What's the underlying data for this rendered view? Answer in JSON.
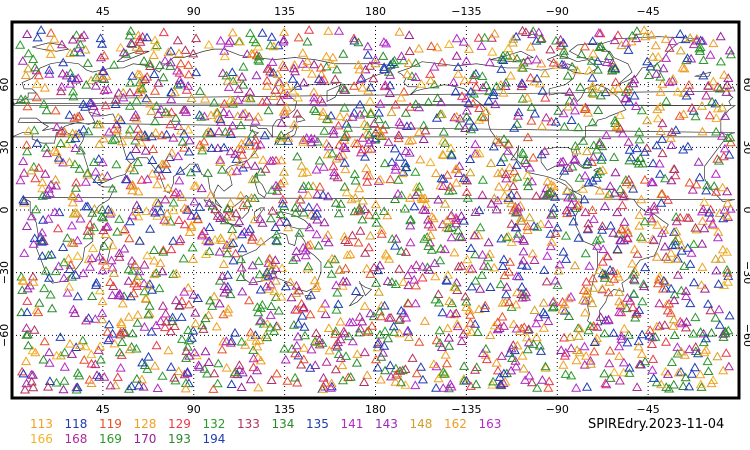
{
  "map": {
    "projection": "cylindrical equidistant",
    "center_longitude": 180,
    "lon_range": [
      0,
      360
    ],
    "lat_range": [
      -90,
      90
    ],
    "gridlines": "dotted",
    "border": "thick black frame",
    "background": "#ffffff",
    "coastline_color": "#333333",
    "marker_shape": "open triangle",
    "lon_ticks": [
      {
        "lon": 45,
        "label": "45"
      },
      {
        "lon": 90,
        "label": "90"
      },
      {
        "lon": 135,
        "label": "135"
      },
      {
        "lon": 180,
        "label": "180"
      },
      {
        "lon": 225,
        "label": "−135"
      },
      {
        "lon": 270,
        "label": "−90"
      },
      {
        "lon": 315,
        "label": "−45"
      }
    ],
    "lat_ticks_left": [
      {
        "lat": 60,
        "label": "60"
      },
      {
        "lat": 30,
        "label": "30"
      },
      {
        "lat": 0,
        "label": "0"
      },
      {
        "lat": -30,
        "label": "−30"
      },
      {
        "lat": -60,
        "label": "−60"
      }
    ],
    "lat_ticks_right": [
      {
        "lat": 60,
        "label": "60"
      },
      {
        "lat": 30,
        "label": "30"
      },
      {
        "lat": 0,
        "label": "0"
      },
      {
        "lat": -30,
        "label": "−30"
      },
      {
        "lat": -60,
        "label": "−60"
      }
    ]
  },
  "legend": {
    "row1": [
      {
        "id": "113",
        "color": "#f0a020"
      },
      {
        "id": "118",
        "color": "#1e3cb4"
      },
      {
        "id": "119",
        "color": "#e8502a"
      },
      {
        "id": "128",
        "color": "#f0a020"
      },
      {
        "id": "129",
        "color": "#e83a4a"
      },
      {
        "id": "132",
        "color": "#2a9a2a"
      },
      {
        "id": "133",
        "color": "#b4325a"
      },
      {
        "id": "134",
        "color": "#2a8a2a"
      },
      {
        "id": "135",
        "color": "#1e3cb4"
      },
      {
        "id": "141",
        "color": "#b428c8"
      },
      {
        "id": "143",
        "color": "#9a28b4"
      },
      {
        "id": "148",
        "color": "#d0a028"
      },
      {
        "id": "162",
        "color": "#f09a28"
      },
      {
        "id": "163",
        "color": "#b428c8"
      }
    ],
    "row2": [
      {
        "id": "166",
        "color": "#f0b428"
      },
      {
        "id": "168",
        "color": "#b42896"
      },
      {
        "id": "169",
        "color": "#2a9a2a"
      },
      {
        "id": "170",
        "color": "#9a1e9a"
      },
      {
        "id": "193",
        "color": "#2a8a2a"
      },
      {
        "id": "194",
        "color": "#1e3cb4"
      }
    ]
  },
  "stamp": "SPIREdry.2023-11-04"
}
